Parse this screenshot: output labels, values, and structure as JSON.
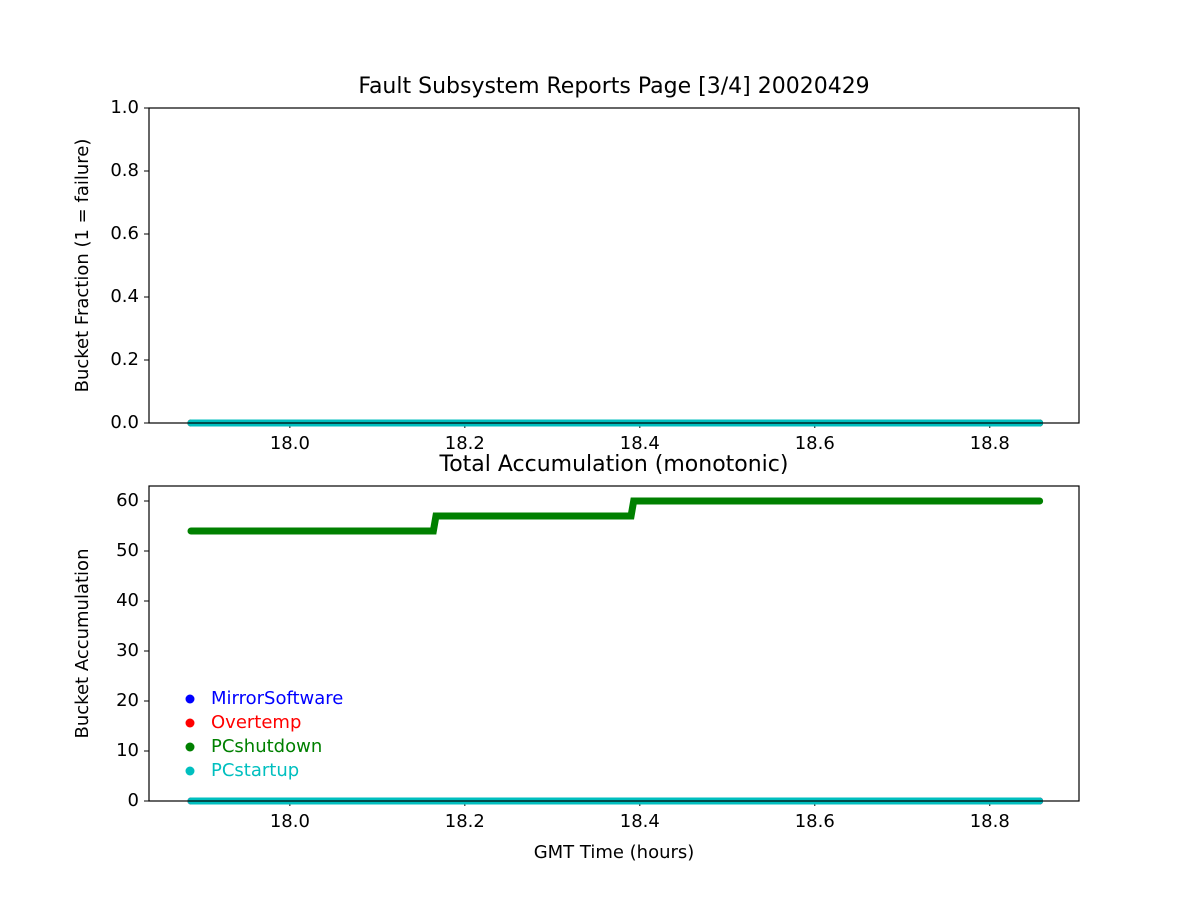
{
  "chart_data": [
    {
      "type": "line",
      "title": "Fault Subsystem Reports Page [3/4] 20020429",
      "ylabel": "Bucket Fraction (1 = failure)",
      "xlim": [
        17.839,
        18.902
      ],
      "ylim": [
        0,
        1
      ],
      "xticks": [
        {
          "value": 18,
          "label": "18.0"
        },
        18.2,
        18.4,
        18.6,
        18.8
      ],
      "yticks": [
        {
          "value": 0,
          "label": "0.0"
        },
        0.2,
        0.4,
        0.6,
        0.8,
        {
          "value": 1,
          "label": "1.0"
        }
      ],
      "series": [
        {
          "name": "MirrorSoftware",
          "color": "#0000ff",
          "x": [
            17.887,
            18.857
          ],
          "values": [
            0,
            0
          ]
        },
        {
          "name": "Overtemp",
          "color": "#ff0000",
          "x": [
            17.887,
            18.857
          ],
          "values": [
            0,
            0
          ]
        },
        {
          "name": "PCshutdown",
          "color": "#008000",
          "x": [
            17.887,
            18.857
          ],
          "values": [
            0,
            0
          ]
        },
        {
          "name": "PCstartup",
          "color": "#00bfbf",
          "x": [
            17.887,
            18.857
          ],
          "values": [
            0,
            0
          ]
        }
      ]
    },
    {
      "type": "line",
      "title": "Total Accumulation (monotonic)",
      "ylabel": "Bucket Accumulation",
      "xlabel": "GMT Time (hours)",
      "xlim": [
        17.839,
        18.902
      ],
      "ylim": [
        0,
        63
      ],
      "xticks": [
        {
          "value": 18,
          "label": "18.0"
        },
        18.2,
        18.4,
        18.6,
        18.8
      ],
      "yticks": [
        0,
        10,
        20,
        30,
        40,
        50,
        60
      ],
      "legend": "lower left",
      "series": [
        {
          "name": "MirrorSoftware",
          "color": "#0000ff",
          "x": [
            17.887,
            18.857
          ],
          "values": [
            0,
            0
          ]
        },
        {
          "name": "Overtemp",
          "color": "#ff0000",
          "x": [
            17.887,
            18.857
          ],
          "values": [
            0,
            0
          ]
        },
        {
          "name": "PCshutdown",
          "color": "#008000",
          "x": [
            17.887,
            18.164,
            18.167,
            18.39,
            18.393,
            18.857
          ],
          "values": [
            54,
            54,
            57,
            57,
            60,
            60
          ]
        },
        {
          "name": "PCstartup",
          "color": "#00bfbf",
          "x": [
            17.887,
            18.857
          ],
          "values": [
            0,
            0
          ]
        }
      ]
    }
  ]
}
